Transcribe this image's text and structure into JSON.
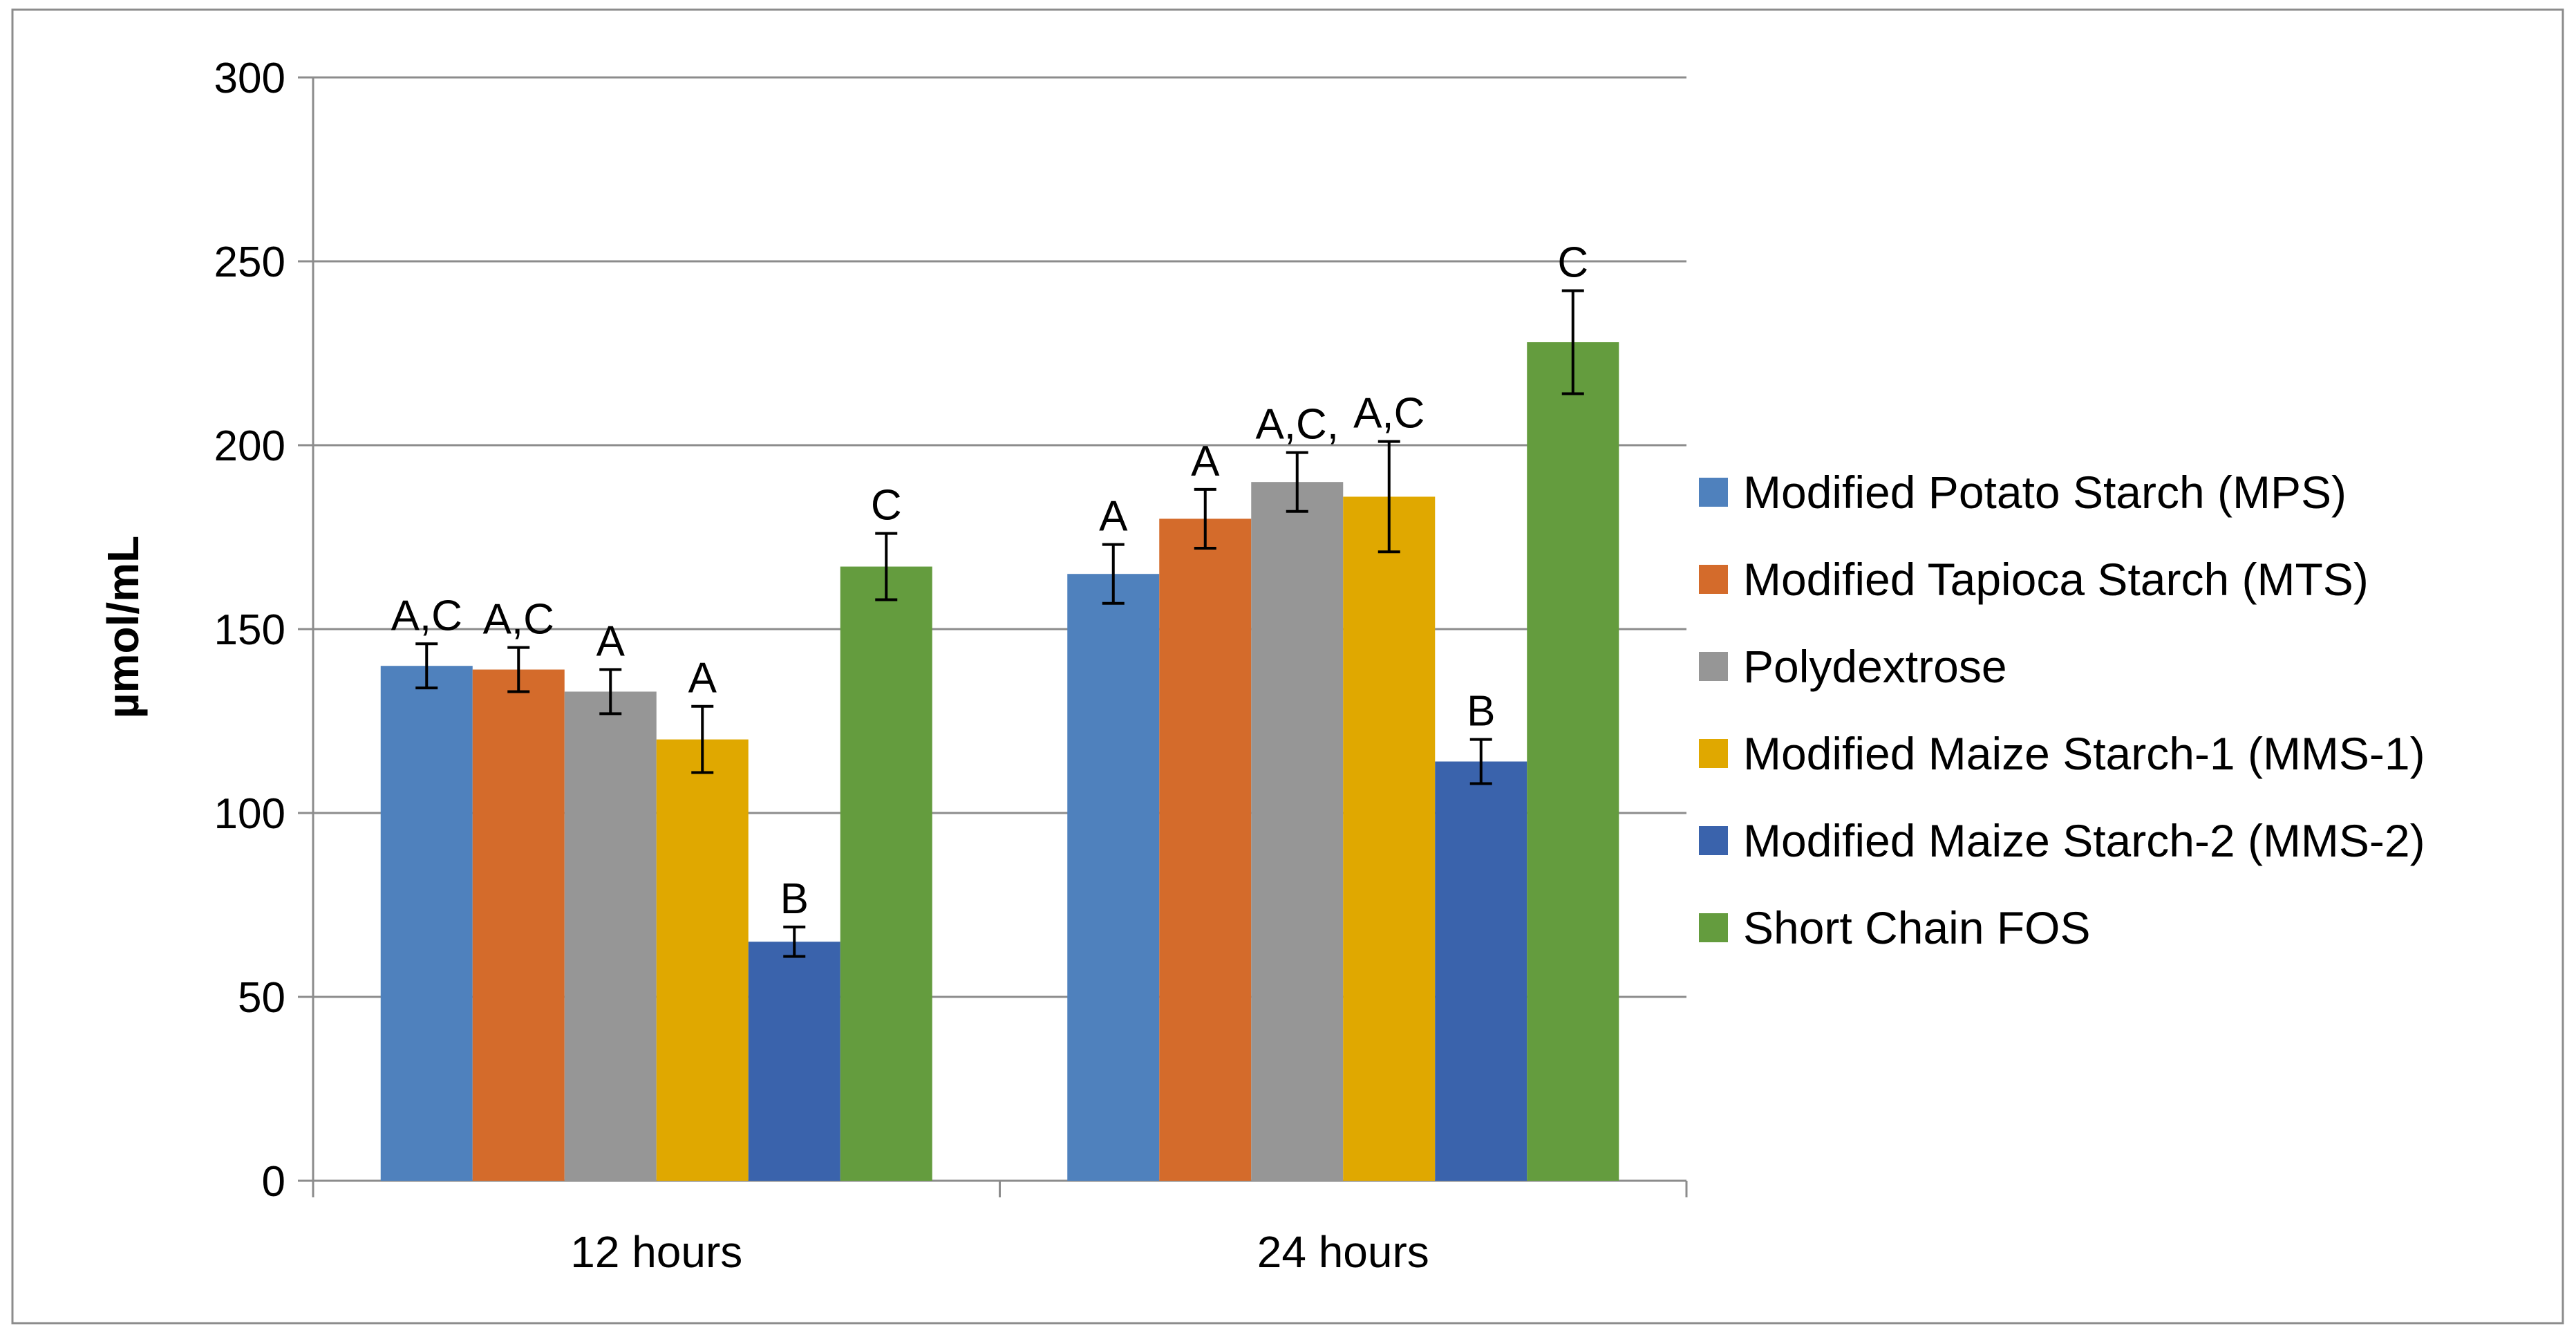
{
  "chart_data": {
    "type": "bar",
    "title": "",
    "xlabel": "",
    "ylabel": "µmol/mL",
    "ylim": [
      0,
      300
    ],
    "yticks": [
      0,
      50,
      100,
      150,
      200,
      250,
      300
    ],
    "grid": true,
    "legend_position": "right",
    "categories": [
      "12 hours",
      "24 hours"
    ],
    "series": [
      {
        "name": "Modified Potato Starch (MPS)",
        "color": "#4f81bd",
        "values": [
          140,
          165
        ],
        "errors": [
          6,
          8
        ],
        "letters": [
          "A,C",
          "A"
        ]
      },
      {
        "name": "Modified Tapioca Starch (MTS)",
        "color": "#d46b2b",
        "values": [
          139,
          180
        ],
        "errors": [
          6,
          8
        ],
        "letters": [
          "A,C",
          "A"
        ]
      },
      {
        "name": "Polydextrose",
        "color": "#969696",
        "values": [
          133,
          190
        ],
        "errors": [
          6,
          8
        ],
        "letters": [
          "A",
          "A,C,"
        ]
      },
      {
        "name": "Modified Maize Starch-1 (MMS-1)",
        "color": "#e0a800",
        "values": [
          120,
          186
        ],
        "errors": [
          9,
          15
        ],
        "letters": [
          "A",
          "A,C"
        ]
      },
      {
        "name": "Modified Maize Starch-2 (MMS-2)",
        "color": "#3a63ac",
        "values": [
          65,
          114
        ],
        "errors": [
          4,
          6
        ],
        "letters": [
          "B",
          "B"
        ]
      },
      {
        "name": "Short Chain FOS",
        "color": "#649c3e",
        "values": [
          167,
          228
        ],
        "errors": [
          9,
          14
        ],
        "letters": [
          "C",
          "C"
        ]
      }
    ]
  }
}
